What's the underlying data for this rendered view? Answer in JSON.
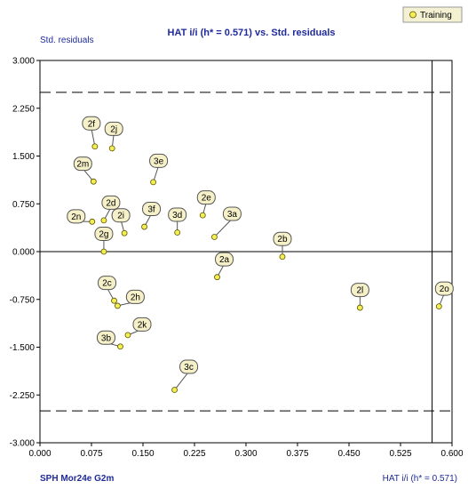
{
  "header": {
    "title": "HAT i/i (h* = 0.571) vs. Std. residuals",
    "y_axis_title": "Std. residuals",
    "x_axis_title": "HAT i/i (h* = 0.571)",
    "model_label": "SPH  Mor24e  G2m"
  },
  "legend": {
    "label": "Training",
    "marker_color": "#f3ee52",
    "placement": "top-right"
  },
  "colors": {
    "point_fill": "#f3ee52",
    "point_stroke": "#5a5200",
    "callout_fill": "#f5f0c8",
    "callout_stroke": "#555555",
    "title_color": "#1f2a9a"
  },
  "chart_data": {
    "type": "scatter",
    "title": "HAT i/i (h* = 0.571) vs. Std. residuals",
    "xlabel": "HAT i/i (h* = 0.571)",
    "ylabel": "Std. residuals",
    "xlim": [
      0.0,
      0.6
    ],
    "ylim": [
      -3.0,
      3.0
    ],
    "x_ticks": [
      "0.000",
      "0.075",
      "0.150",
      "0.225",
      "0.300",
      "0.375",
      "0.450",
      "0.525",
      "0.600"
    ],
    "y_ticks": [
      "3.000",
      "2.250",
      "1.500",
      "0.750",
      "0.000",
      "-0.750",
      "-1.500",
      "-2.250",
      "-3.000"
    ],
    "reference_lines": {
      "warning_leverage": 0.571,
      "residual_upper": 2.5,
      "residual_lower": -2.5,
      "zero_line": 0.0
    },
    "grid": false,
    "legend": "top-right",
    "series": [
      {
        "name": "Training",
        "points": [
          {
            "label": "2f",
            "x": 0.08,
            "y": 1.65,
            "lx": -4,
            "ly": -26
          },
          {
            "label": "2j",
            "x": 0.105,
            "y": 1.62,
            "lx": 2,
            "ly": -22
          },
          {
            "label": "2m",
            "x": 0.078,
            "y": 1.1,
            "lx": -12,
            "ly": -20
          },
          {
            "label": "3e",
            "x": 0.165,
            "y": 1.09,
            "lx": 6,
            "ly": -24
          },
          {
            "label": "2d",
            "x": 0.093,
            "y": 0.49,
            "lx": 8,
            "ly": -20
          },
          {
            "label": "2n",
            "x": 0.076,
            "y": 0.47,
            "lx": -18,
            "ly": -6
          },
          {
            "label": "2i",
            "x": 0.123,
            "y": 0.29,
            "lx": -4,
            "ly": -20
          },
          {
            "label": "3f",
            "x": 0.152,
            "y": 0.39,
            "lx": 8,
            "ly": -20
          },
          {
            "label": "3d",
            "x": 0.2,
            "y": 0.3,
            "lx": 0,
            "ly": -20
          },
          {
            "label": "2e",
            "x": 0.237,
            "y": 0.57,
            "lx": 4,
            "ly": -20
          },
          {
            "label": "3a",
            "x": 0.254,
            "y": 0.23,
            "lx": 20,
            "ly": -26
          },
          {
            "label": "2g",
            "x": 0.093,
            "y": 0.0,
            "lx": 0,
            "ly": -20
          },
          {
            "label": "2b",
            "x": 0.353,
            "y": -0.08,
            "lx": 0,
            "ly": -20
          },
          {
            "label": "2a",
            "x": 0.258,
            "y": -0.4,
            "lx": 8,
            "ly": -20
          },
          {
            "label": "2c",
            "x": 0.108,
            "y": -0.77,
            "lx": -8,
            "ly": -20
          },
          {
            "label": "2h",
            "x": 0.113,
            "y": -0.85,
            "lx": 20,
            "ly": -10
          },
          {
            "label": "2l",
            "x": 0.466,
            "y": -0.88,
            "lx": 0,
            "ly": -20
          },
          {
            "label": "2o",
            "x": 0.581,
            "y": -0.86,
            "lx": 6,
            "ly": -20
          },
          {
            "label": "2k",
            "x": 0.128,
            "y": -1.31,
            "lx": 16,
            "ly": -12
          },
          {
            "label": "3b",
            "x": 0.117,
            "y": -1.49,
            "lx": -16,
            "ly": -10
          },
          {
            "label": "3c",
            "x": 0.196,
            "y": -2.17,
            "lx": 16,
            "ly": -26
          }
        ]
      }
    ]
  }
}
